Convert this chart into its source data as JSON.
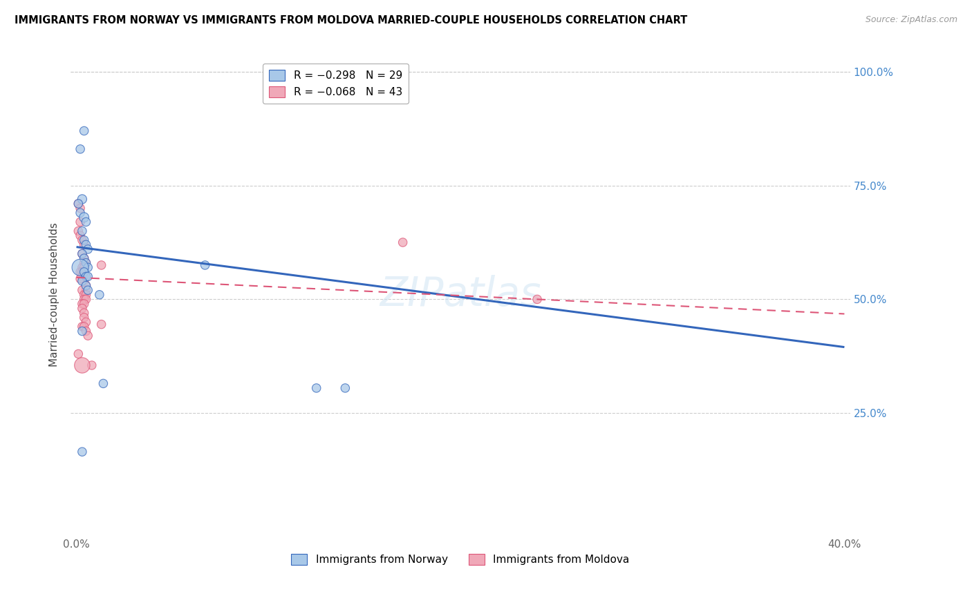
{
  "title": "IMMIGRANTS FROM NORWAY VS IMMIGRANTS FROM MOLDOVA MARRIED-COUPLE HOUSEHOLDS CORRELATION CHART",
  "source": "Source: ZipAtlas.com",
  "ylabel": "Married-couple Households",
  "xlabel_norway": "Immigrants from Norway",
  "xlabel_moldova": "Immigrants from Moldova",
  "xlim": [
    0.0,
    0.4
  ],
  "ylim": [
    0.0,
    1.0
  ],
  "yticks": [
    0.0,
    0.25,
    0.5,
    0.75,
    1.0
  ],
  "ytick_labels": [
    "",
    "25.0%",
    "50.0%",
    "75.0%",
    "100.0%"
  ],
  "xticks": [
    0.0,
    0.08,
    0.16,
    0.24,
    0.32,
    0.4
  ],
  "xtick_labels": [
    "0.0%",
    "",
    "",
    "",
    "",
    "40.0%"
  ],
  "norway_color": "#a8c8e8",
  "moldova_color": "#f0a8b8",
  "norway_line_color": "#3366bb",
  "moldova_line_color": "#dd5577",
  "right_tick_color": "#4488cc",
  "legend_R_norway": "R = −0.298",
  "legend_N_norway": "N = 29",
  "legend_R_moldova": "R = −0.068",
  "legend_N_moldova": "N = 43",
  "norway_line_x0": 0.0,
  "norway_line_y0": 0.615,
  "norway_line_x1": 0.4,
  "norway_line_y1": 0.395,
  "moldova_line_x0": 0.0,
  "moldova_line_y0": 0.548,
  "moldova_line_x1": 0.4,
  "moldova_line_y1": 0.468,
  "norway_points": [
    [
      0.002,
      0.83
    ],
    [
      0.004,
      0.87
    ],
    [
      0.003,
      0.72
    ],
    [
      0.001,
      0.71
    ],
    [
      0.002,
      0.69
    ],
    [
      0.004,
      0.68
    ],
    [
      0.005,
      0.67
    ],
    [
      0.003,
      0.65
    ],
    [
      0.004,
      0.63
    ],
    [
      0.005,
      0.62
    ],
    [
      0.006,
      0.61
    ],
    [
      0.003,
      0.6
    ],
    [
      0.004,
      0.59
    ],
    [
      0.005,
      0.58
    ],
    [
      0.006,
      0.57
    ],
    [
      0.002,
      0.57
    ],
    [
      0.004,
      0.56
    ],
    [
      0.005,
      0.55
    ],
    [
      0.006,
      0.55
    ],
    [
      0.003,
      0.54
    ],
    [
      0.005,
      0.53
    ],
    [
      0.006,
      0.52
    ],
    [
      0.012,
      0.51
    ],
    [
      0.003,
      0.43
    ],
    [
      0.014,
      0.315
    ],
    [
      0.067,
      0.575
    ],
    [
      0.125,
      0.305
    ],
    [
      0.003,
      0.165
    ],
    [
      0.14,
      0.305
    ]
  ],
  "norway_sizes": [
    80,
    80,
    90,
    80,
    80,
    100,
    80,
    80,
    80,
    80,
    80,
    80,
    80,
    80,
    80,
    300,
    80,
    80,
    80,
    80,
    80,
    80,
    80,
    80,
    80,
    80,
    80,
    80,
    80
  ],
  "moldova_points": [
    [
      0.001,
      0.71
    ],
    [
      0.002,
      0.7
    ],
    [
      0.002,
      0.67
    ],
    [
      0.001,
      0.65
    ],
    [
      0.002,
      0.64
    ],
    [
      0.003,
      0.63
    ],
    [
      0.004,
      0.62
    ],
    [
      0.003,
      0.6
    ],
    [
      0.004,
      0.59
    ],
    [
      0.004,
      0.58
    ],
    [
      0.005,
      0.58
    ],
    [
      0.003,
      0.57
    ],
    [
      0.004,
      0.57
    ],
    [
      0.002,
      0.56
    ],
    [
      0.003,
      0.56
    ],
    [
      0.003,
      0.55
    ],
    [
      0.004,
      0.55
    ],
    [
      0.004,
      0.54
    ],
    [
      0.005,
      0.53
    ],
    [
      0.005,
      0.52
    ],
    [
      0.003,
      0.52
    ],
    [
      0.004,
      0.51
    ],
    [
      0.005,
      0.51
    ],
    [
      0.004,
      0.5
    ],
    [
      0.005,
      0.5
    ],
    [
      0.003,
      0.49
    ],
    [
      0.004,
      0.49
    ],
    [
      0.003,
      0.48
    ],
    [
      0.004,
      0.47
    ],
    [
      0.004,
      0.46
    ],
    [
      0.005,
      0.45
    ],
    [
      0.003,
      0.44
    ],
    [
      0.004,
      0.44
    ],
    [
      0.005,
      0.43
    ],
    [
      0.006,
      0.42
    ],
    [
      0.013,
      0.575
    ],
    [
      0.013,
      0.445
    ],
    [
      0.001,
      0.38
    ],
    [
      0.008,
      0.355
    ],
    [
      0.003,
      0.355
    ],
    [
      0.17,
      0.625
    ],
    [
      0.24,
      0.5
    ],
    [
      0.002,
      0.545
    ]
  ],
  "moldova_sizes": [
    80,
    80,
    80,
    80,
    80,
    80,
    80,
    80,
    80,
    80,
    80,
    80,
    80,
    80,
    80,
    80,
    80,
    80,
    80,
    80,
    80,
    80,
    80,
    80,
    80,
    80,
    80,
    80,
    80,
    80,
    80,
    80,
    80,
    80,
    80,
    80,
    80,
    80,
    80,
    260,
    80,
    80,
    80
  ]
}
